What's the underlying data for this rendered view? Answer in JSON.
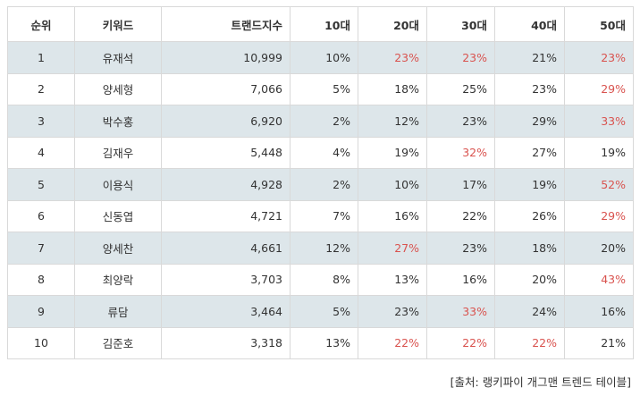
{
  "table": {
    "headers": [
      "순위",
      "키워드",
      "트랜드지수",
      "10대",
      "20대",
      "30대",
      "40대",
      "50대"
    ],
    "rows": [
      {
        "rank": "1",
        "keyword": "유재석",
        "index": "10,999",
        "a10": "10%",
        "a20": "23%",
        "a30": "23%",
        "a40": "21%",
        "a50": "23%",
        "hi": [
          "a20",
          "a30",
          "a50"
        ]
      },
      {
        "rank": "2",
        "keyword": "양세형",
        "index": "7,066",
        "a10": "5%",
        "a20": "18%",
        "a30": "25%",
        "a40": "23%",
        "a50": "29%",
        "hi": [
          "a50"
        ]
      },
      {
        "rank": "3",
        "keyword": "박수홍",
        "index": "6,920",
        "a10": "2%",
        "a20": "12%",
        "a30": "23%",
        "a40": "29%",
        "a50": "33%",
        "hi": [
          "a50"
        ]
      },
      {
        "rank": "4",
        "keyword": "김재우",
        "index": "5,448",
        "a10": "4%",
        "a20": "19%",
        "a30": "32%",
        "a40": "27%",
        "a50": "19%",
        "hi": [
          "a30"
        ]
      },
      {
        "rank": "5",
        "keyword": "이용식",
        "index": "4,928",
        "a10": "2%",
        "a20": "10%",
        "a30": "17%",
        "a40": "19%",
        "a50": "52%",
        "hi": [
          "a50"
        ]
      },
      {
        "rank": "6",
        "keyword": "신동엽",
        "index": "4,721",
        "a10": "7%",
        "a20": "16%",
        "a30": "22%",
        "a40": "26%",
        "a50": "29%",
        "hi": [
          "a50"
        ]
      },
      {
        "rank": "7",
        "keyword": "양세찬",
        "index": "4,661",
        "a10": "12%",
        "a20": "27%",
        "a30": "23%",
        "a40": "18%",
        "a50": "20%",
        "hi": [
          "a20"
        ]
      },
      {
        "rank": "8",
        "keyword": "최양락",
        "index": "3,703",
        "a10": "8%",
        "a20": "13%",
        "a30": "16%",
        "a40": "20%",
        "a50": "43%",
        "hi": [
          "a50"
        ]
      },
      {
        "rank": "9",
        "keyword": "류담",
        "index": "3,464",
        "a10": "5%",
        "a20": "23%",
        "a30": "33%",
        "a40": "24%",
        "a50": "16%",
        "hi": [
          "a30"
        ]
      },
      {
        "rank": "10",
        "keyword": "김준호",
        "index": "3,318",
        "a10": "13%",
        "a20": "22%",
        "a30": "22%",
        "a40": "22%",
        "a50": "21%",
        "hi": [
          "a20",
          "a30",
          "a40"
        ]
      }
    ]
  },
  "source": "[출처: 랭키파이 개그맨 트렌드 테이블]",
  "colors": {
    "highlight": "#d9534f",
    "row_shade": "#dde6ea",
    "border": "#d9d9d9"
  }
}
